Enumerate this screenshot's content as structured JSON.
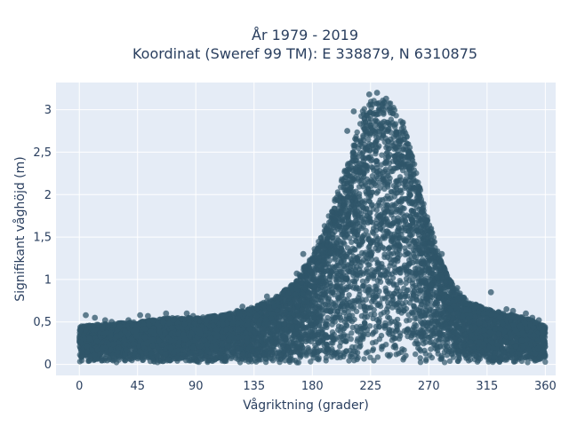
{
  "chart_data": {
    "type": "scatter",
    "title_line1": "År 1979 - 2019",
    "title_line2": "Koordinat (Sweref 99 TM): E 338879, N 6310875",
    "xlabel": "Vågriktning (grader)",
    "ylabel": "Signifikant våghöjd (m)",
    "xlim": [
      -18,
      368
    ],
    "ylim": [
      -0.13,
      3.32
    ],
    "x_ticks": [
      0,
      45,
      90,
      135,
      180,
      225,
      270,
      315,
      360
    ],
    "x_tick_labels": [
      "0",
      "45",
      "90",
      "135",
      "180",
      "225",
      "270",
      "315",
      "360"
    ],
    "y_ticks": [
      0,
      0.5,
      1,
      1.5,
      2,
      2.5,
      3
    ],
    "y_tick_labels": [
      "0",
      "0,5",
      "1",
      "1,5",
      "2",
      "2,5",
      "3"
    ],
    "grid": true,
    "marker_color": "#2f5569",
    "envelope": {
      "direction": [
        0,
        20,
        45,
        70,
        90,
        110,
        130,
        150,
        165,
        180,
        195,
        210,
        220,
        230,
        240,
        250,
        260,
        270,
        280,
        290,
        300,
        315,
        330,
        345,
        360
      ],
      "max_height": [
        0.45,
        0.48,
        0.5,
        0.55,
        0.55,
        0.58,
        0.65,
        0.78,
        0.95,
        1.3,
        1.85,
        2.5,
        3.05,
        3.15,
        3.1,
        2.85,
        2.3,
        1.7,
        1.2,
        0.9,
        0.75,
        0.65,
        0.6,
        0.55,
        0.45
      ],
      "min_height": 0.02,
      "point_count": 9000
    },
    "outliers": [
      {
        "x": 5,
        "y": 0.58
      },
      {
        "x": 12,
        "y": 0.55
      },
      {
        "x": 20,
        "y": 0.52
      },
      {
        "x": 25,
        "y": 0.5
      },
      {
        "x": 38,
        "y": 0.52
      },
      {
        "x": 47,
        "y": 0.58
      },
      {
        "x": 53,
        "y": 0.57
      },
      {
        "x": 67,
        "y": 0.6
      },
      {
        "x": 83,
        "y": 0.6
      },
      {
        "x": 88,
        "y": 0.57
      },
      {
        "x": 100,
        "y": 0.55
      },
      {
        "x": 122,
        "y": 0.63
      },
      {
        "x": 126,
        "y": 0.68
      },
      {
        "x": 145,
        "y": 0.8
      },
      {
        "x": 168,
        "y": 1.07
      },
      {
        "x": 173,
        "y": 1.3
      },
      {
        "x": 262,
        "y": 2.0
      },
      {
        "x": 272,
        "y": 1.55
      },
      {
        "x": 280,
        "y": 1.3
      },
      {
        "x": 292,
        "y": 0.9
      },
      {
        "x": 318,
        "y": 0.85
      },
      {
        "x": 330,
        "y": 0.65
      },
      {
        "x": 335,
        "y": 0.63
      },
      {
        "x": 345,
        "y": 0.6
      },
      {
        "x": 350,
        "y": 0.55
      },
      {
        "x": 355,
        "y": 0.52
      },
      {
        "x": 230,
        "y": 3.2
      },
      {
        "x": 224,
        "y": 3.18
      },
      {
        "x": 212,
        "y": 2.98
      },
      {
        "x": 237,
        "y": 3.13
      },
      {
        "x": 250,
        "y": 2.85
      },
      {
        "x": 207,
        "y": 2.75
      }
    ]
  }
}
